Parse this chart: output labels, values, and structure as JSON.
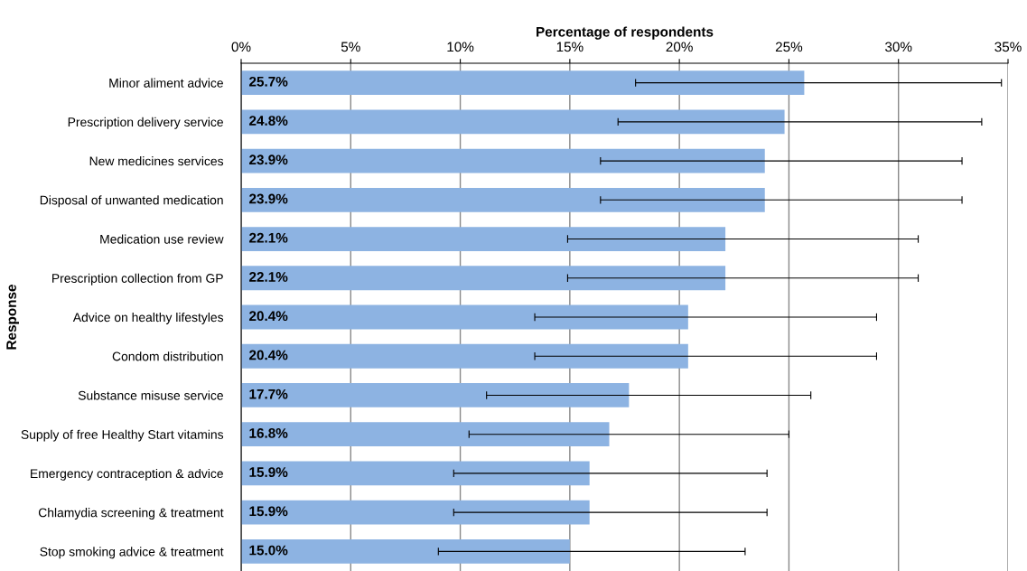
{
  "chart_data": {
    "type": "bar",
    "orientation": "horizontal",
    "xlabel": "Percentage of respondents",
    "ylabel": "Response",
    "categories": [
      "Minor aliment advice",
      "Prescription delivery service",
      "New medicines services",
      "Disposal of unwanted medication",
      "Medication use review",
      "Prescription collection from GP",
      "Advice on healthy lifestyles",
      "Condom distribution",
      "Substance misuse service",
      "Supply of free Healthy Start vitamins",
      "Emergency contraception & advice",
      "Chlamydia screening & treatment",
      "Stop smoking advice & treatment"
    ],
    "values": [
      25.7,
      24.8,
      23.9,
      23.9,
      22.1,
      22.1,
      20.4,
      20.4,
      17.7,
      16.8,
      15.9,
      15.9,
      15.0
    ],
    "value_labels": [
      "25.7%",
      "24.8%",
      "23.9%",
      "23.9%",
      "22.1%",
      "22.1%",
      "20.4%",
      "20.4%",
      "17.7%",
      "16.8%",
      "15.9%",
      "15.9%",
      "15.0%"
    ],
    "errors": [
      [
        18.0,
        34.7
      ],
      [
        17.2,
        33.8
      ],
      [
        16.4,
        32.9
      ],
      [
        16.4,
        32.9
      ],
      [
        14.9,
        30.9
      ],
      [
        14.9,
        30.9
      ],
      [
        13.4,
        29.0
      ],
      [
        13.4,
        29.0
      ],
      [
        11.2,
        26.0
      ],
      [
        10.4,
        25.0
      ],
      [
        9.7,
        24.0
      ],
      [
        9.7,
        24.0
      ],
      [
        9.0,
        23.0
      ]
    ],
    "color": "#8db3e2",
    "xlim": [
      0,
      35
    ],
    "xticks": [
      {
        "value": 0,
        "label": "0%"
      },
      {
        "value": 5,
        "label": "5%"
      },
      {
        "value": 10,
        "label": "10%"
      },
      {
        "value": 15,
        "label": "15%"
      },
      {
        "value": 20,
        "label": "20%"
      },
      {
        "value": 25,
        "label": "25%"
      },
      {
        "value": 30,
        "label": "30%"
      },
      {
        "value": 35,
        "label": "35%"
      }
    ],
    "grid": "x"
  }
}
